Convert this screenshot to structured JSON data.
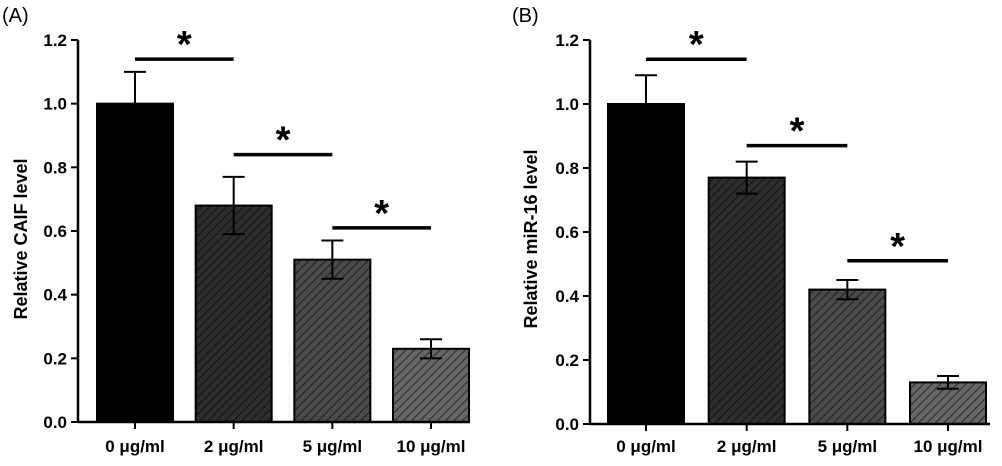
{
  "chart_data": [
    {
      "type": "bar",
      "panel_label": "(A)",
      "ylabel": "Relative CAIF level",
      "categories": [
        "0 μg/ml",
        "2 μg/ml",
        "5 μg/ml",
        "10 μg/ml"
      ],
      "values": [
        1.0,
        0.68,
        0.51,
        0.23
      ],
      "errors": [
        0.1,
        0.09,
        0.06,
        0.03
      ],
      "ylim": [
        0,
        1.2
      ],
      "yticks": [
        "0.0",
        "0.2",
        "0.4",
        "0.6",
        "0.8",
        "1.0",
        "1.2"
      ],
      "bar_colors": [
        "#000000",
        "#2e2e2e",
        "#4a4a4a",
        "#666666"
      ],
      "significance": [
        {
          "from": 0,
          "to": 1,
          "y": 1.14,
          "label": "*"
        },
        {
          "from": 1,
          "to": 2,
          "y": 0.84,
          "label": "*"
        },
        {
          "from": 2,
          "to": 3,
          "y": 0.61,
          "label": "*"
        }
      ]
    },
    {
      "type": "bar",
      "panel_label": "(B)",
      "ylabel": "Relative miR-16 level",
      "categories": [
        "0 μg/ml",
        "2 μg/ml",
        "5 μg/ml",
        "10 μg/ml"
      ],
      "values": [
        1.0,
        0.77,
        0.42,
        0.13
      ],
      "errors": [
        0.09,
        0.05,
        0.03,
        0.02
      ],
      "ylim": [
        0,
        1.2
      ],
      "yticks": [
        "0.0",
        "0.2",
        "0.4",
        "0.6",
        "0.8",
        "1.0",
        "1.2"
      ],
      "bar_colors": [
        "#000000",
        "#2e2e2e",
        "#4a4a4a",
        "#666666"
      ],
      "significance": [
        {
          "from": 0,
          "to": 1,
          "y": 1.14,
          "label": "*"
        },
        {
          "from": 1,
          "to": 2,
          "y": 0.87,
          "label": "*"
        },
        {
          "from": 2,
          "to": 3,
          "y": 0.51,
          "label": "*"
        }
      ]
    }
  ]
}
